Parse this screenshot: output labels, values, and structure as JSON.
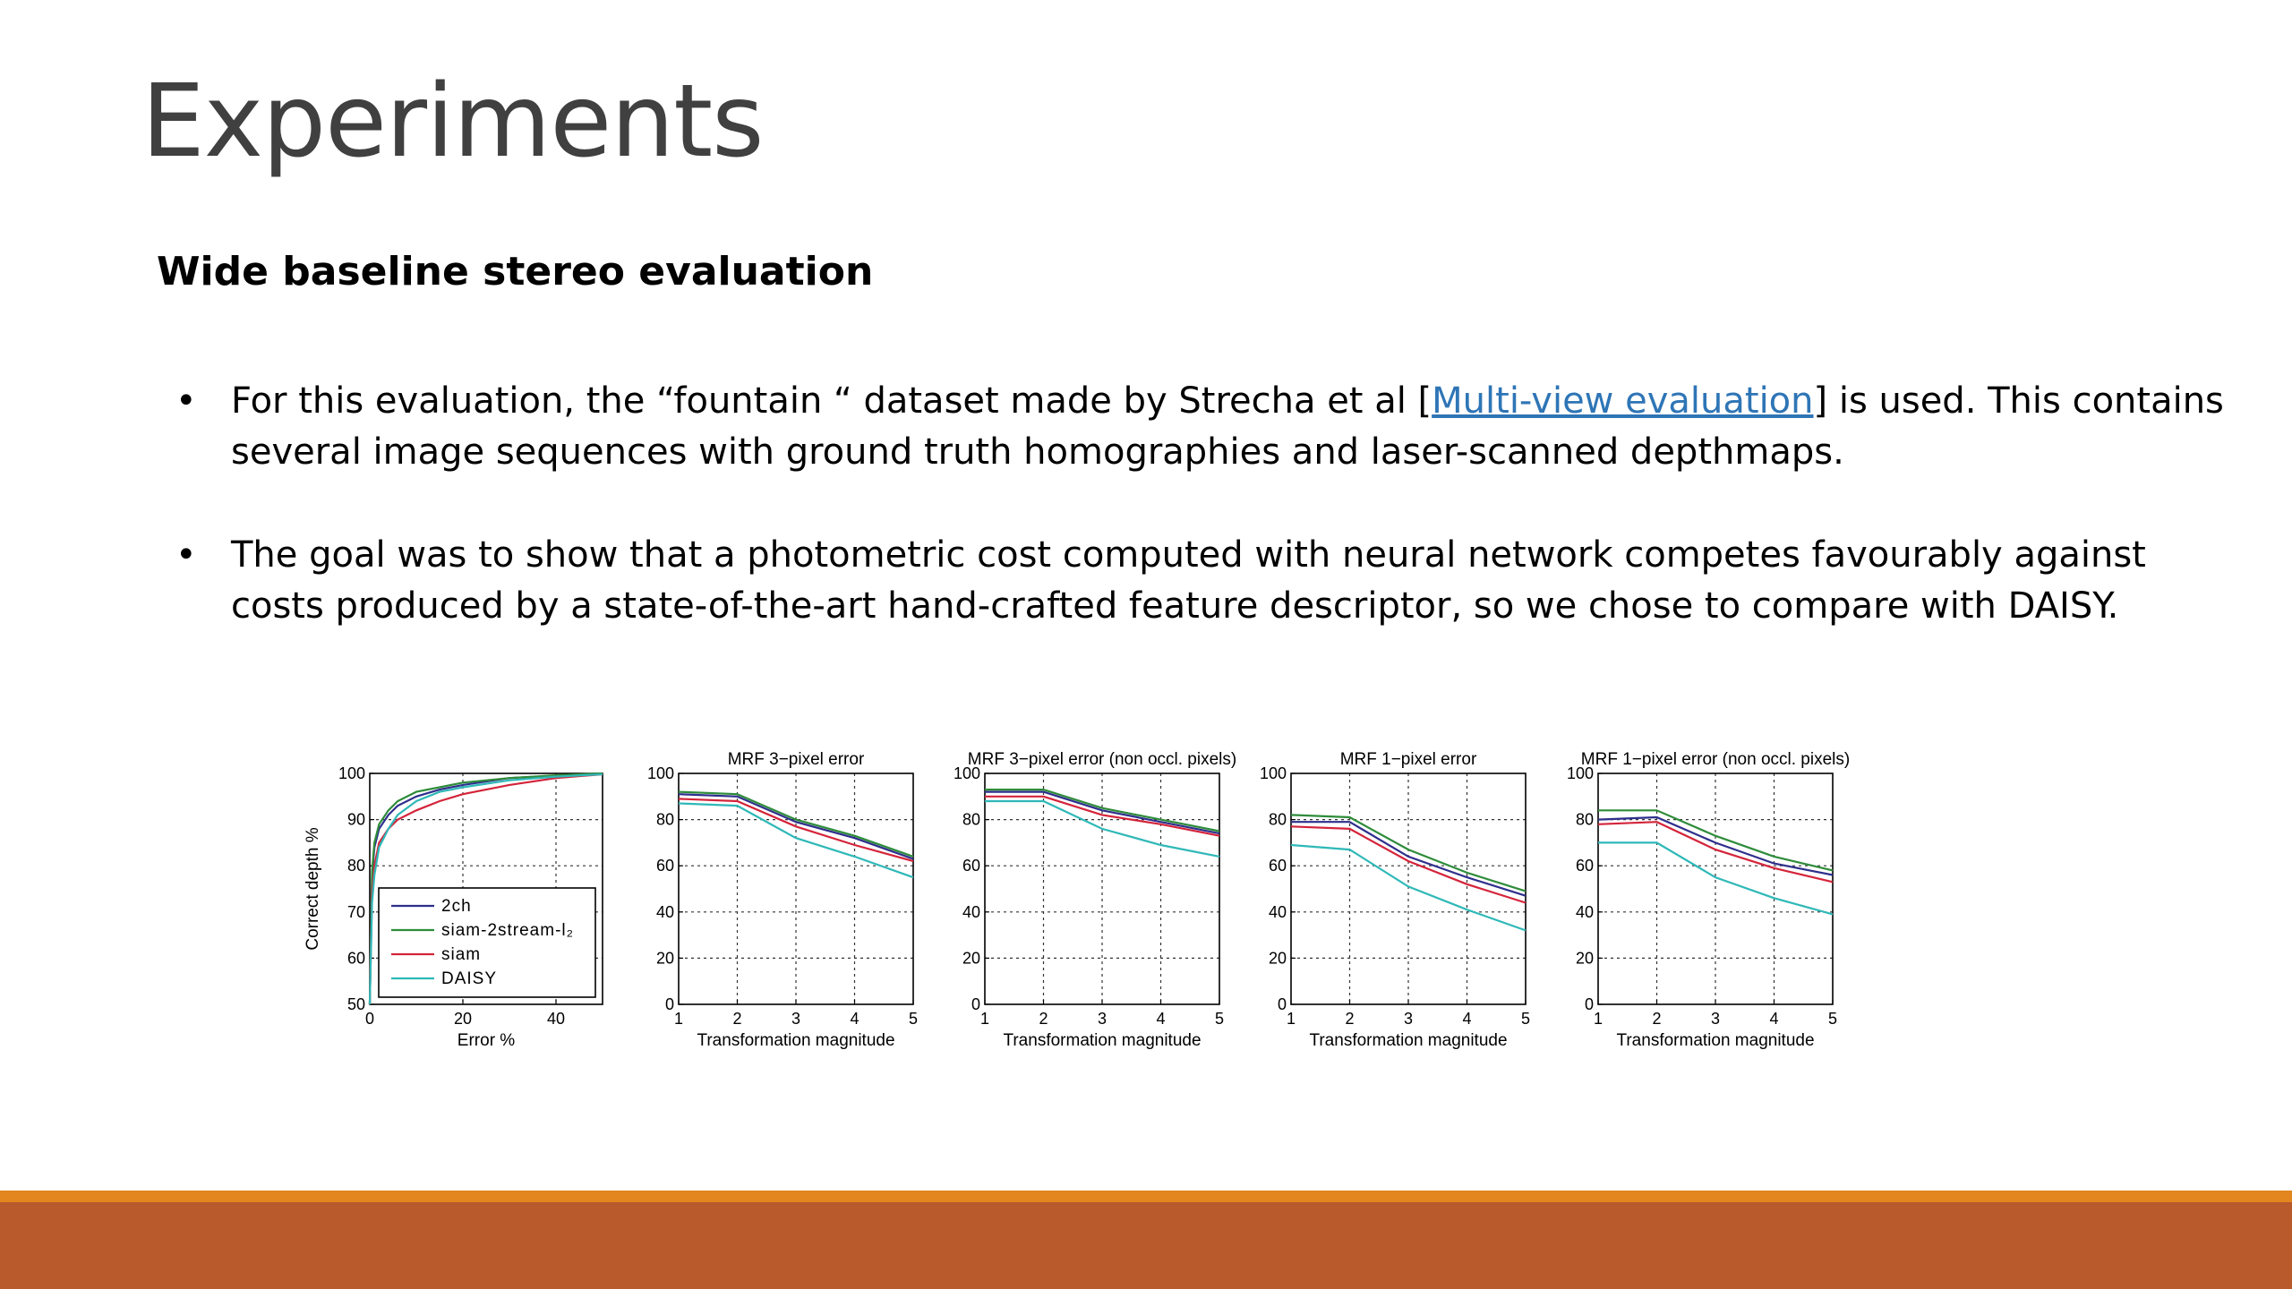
{
  "slide": {
    "title": "Experiments",
    "subtitle": "Wide baseline stereo evaluation",
    "bullets": [
      {
        "pre": "For this evaluation, the “fountain “ dataset made by Strecha et al [",
        "link": "Multi-view evaluation",
        "post": "] is used. This contains several image sequences with ground truth homographies and laser-scanned depthmaps."
      },
      {
        "pre": "The goal was to show that a photometric cost computed with neural network competes favourably against costs produced by a state-of-the-art hand-crafted feature descriptor, so we chose to compare with DAISY.",
        "link": "",
        "post": ""
      }
    ],
    "bullet_glyph": "•"
  },
  "colors": {
    "2ch": "#2e2e8c",
    "siam-2stream-l2": "#2e8c3a",
    "siam": "#d4243a",
    "DAISY": "#2fb8b8"
  },
  "chart_data": [
    {
      "type": "line",
      "title": "",
      "xlabel": "Error %",
      "ylabel": "Correct depth %",
      "xlim": [
        0,
        50
      ],
      "ylim": [
        50,
        100
      ],
      "xticks": [
        0,
        20,
        40
      ],
      "yticks": [
        50,
        60,
        70,
        80,
        90,
        100
      ],
      "grid": true,
      "legend": "bottom-left",
      "series": [
        {
          "name": "2ch",
          "x": [
            0,
            0.5,
            1,
            2,
            4,
            6,
            10,
            15,
            20,
            30,
            40,
            50
          ],
          "y": [
            50,
            78,
            84,
            88,
            91,
            93,
            95,
            96.5,
            97.5,
            99,
            99.5,
            100
          ]
        },
        {
          "name": "siam-2stream-l₂",
          "x": [
            0,
            0.5,
            1,
            2,
            4,
            6,
            10,
            15,
            20,
            30,
            40,
            50
          ],
          "y": [
            50,
            79,
            85,
            89,
            92,
            94,
            96,
            97,
            98,
            99,
            99.6,
            100
          ]
        },
        {
          "name": "siam",
          "x": [
            0,
            0.5,
            1,
            2,
            4,
            6,
            10,
            15,
            20,
            30,
            40,
            50
          ],
          "y": [
            50,
            74,
            80,
            85,
            88,
            90,
            92,
            94,
            95.5,
            97.5,
            99,
            99.8
          ]
        },
        {
          "name": "DAISY",
          "x": [
            0,
            0.5,
            1,
            2,
            4,
            6,
            10,
            15,
            20,
            30,
            40,
            50
          ],
          "y": [
            50,
            72,
            78,
            84,
            88,
            91,
            94,
            96,
            97,
            98.5,
            99.3,
            99.8
          ]
        }
      ]
    },
    {
      "type": "line",
      "title": "MRF 3−pixel error",
      "xlabel": "Transformation magnitude",
      "ylabel": "",
      "xlim": [
        1,
        5
      ],
      "ylim": [
        0,
        100
      ],
      "xticks": [
        1,
        2,
        3,
        4,
        5
      ],
      "yticks": [
        0,
        20,
        40,
        60,
        80,
        100
      ],
      "grid": true,
      "series": [
        {
          "name": "2ch",
          "x": [
            1,
            2,
            3,
            4,
            5
          ],
          "y": [
            91,
            90,
            79,
            72,
            63
          ]
        },
        {
          "name": "siam-2stream-l₂",
          "x": [
            1,
            2,
            3,
            4,
            5
          ],
          "y": [
            92,
            91,
            80,
            73,
            64
          ]
        },
        {
          "name": "siam",
          "x": [
            1,
            2,
            3,
            4,
            5
          ],
          "y": [
            89,
            88,
            77,
            69,
            62
          ]
        },
        {
          "name": "DAISY",
          "x": [
            1,
            2,
            3,
            4,
            5
          ],
          "y": [
            87,
            86,
            72,
            64,
            55
          ]
        }
      ]
    },
    {
      "type": "line",
      "title": "MRF 3−pixel error (non occl. pixels)",
      "xlabel": "Transformation magnitude",
      "ylabel": "",
      "xlim": [
        1,
        5
      ],
      "ylim": [
        0,
        100
      ],
      "xticks": [
        1,
        2,
        3,
        4,
        5
      ],
      "yticks": [
        0,
        20,
        40,
        60,
        80,
        100
      ],
      "grid": true,
      "series": [
        {
          "name": "2ch",
          "x": [
            1,
            2,
            3,
            4,
            5
          ],
          "y": [
            92,
            92,
            84,
            79,
            74
          ]
        },
        {
          "name": "siam-2stream-l₂",
          "x": [
            1,
            2,
            3,
            4,
            5
          ],
          "y": [
            93,
            93,
            85,
            80,
            75
          ]
        },
        {
          "name": "siam",
          "x": [
            1,
            2,
            3,
            4,
            5
          ],
          "y": [
            90,
            90,
            82,
            78,
            73
          ]
        },
        {
          "name": "DAISY",
          "x": [
            1,
            2,
            3,
            4,
            5
          ],
          "y": [
            88,
            88,
            76,
            69,
            64
          ]
        }
      ]
    },
    {
      "type": "line",
      "title": "MRF 1−pixel error",
      "xlabel": "Transformation magnitude",
      "ylabel": "",
      "xlim": [
        1,
        5
      ],
      "ylim": [
        0,
        100
      ],
      "xticks": [
        1,
        2,
        3,
        4,
        5
      ],
      "yticks": [
        0,
        20,
        40,
        60,
        80,
        100
      ],
      "grid": true,
      "series": [
        {
          "name": "2ch",
          "x": [
            1,
            2,
            3,
            4,
            5
          ],
          "y": [
            79,
            79,
            64,
            55,
            47
          ]
        },
        {
          "name": "siam-2stream-l₂",
          "x": [
            1,
            2,
            3,
            4,
            5
          ],
          "y": [
            82,
            81,
            67,
            57,
            49
          ]
        },
        {
          "name": "siam",
          "x": [
            1,
            2,
            3,
            4,
            5
          ],
          "y": [
            77,
            76,
            62,
            52,
            44
          ]
        },
        {
          "name": "DAISY",
          "x": [
            1,
            2,
            3,
            4,
            5
          ],
          "y": [
            69,
            67,
            51,
            41,
            32
          ]
        }
      ]
    },
    {
      "type": "line",
      "title": "MRF 1−pixel error (non occl. pixels)",
      "xlabel": "Transformation magnitude",
      "ylabel": "",
      "xlim": [
        1,
        5
      ],
      "ylim": [
        0,
        100
      ],
      "xticks": [
        1,
        2,
        3,
        4,
        5
      ],
      "yticks": [
        0,
        20,
        40,
        60,
        80,
        100
      ],
      "grid": true,
      "series": [
        {
          "name": "2ch",
          "x": [
            1,
            2,
            3,
            4,
            5
          ],
          "y": [
            80,
            81,
            70,
            61,
            56
          ]
        },
        {
          "name": "siam-2stream-l₂",
          "x": [
            1,
            2,
            3,
            4,
            5
          ],
          "y": [
            84,
            84,
            73,
            64,
            58
          ]
        },
        {
          "name": "siam",
          "x": [
            1,
            2,
            3,
            4,
            5
          ],
          "y": [
            78,
            79,
            67,
            59,
            53
          ]
        },
        {
          "name": "DAISY",
          "x": [
            1,
            2,
            3,
            4,
            5
          ],
          "y": [
            70,
            70,
            55,
            46,
            39
          ]
        }
      ]
    }
  ]
}
